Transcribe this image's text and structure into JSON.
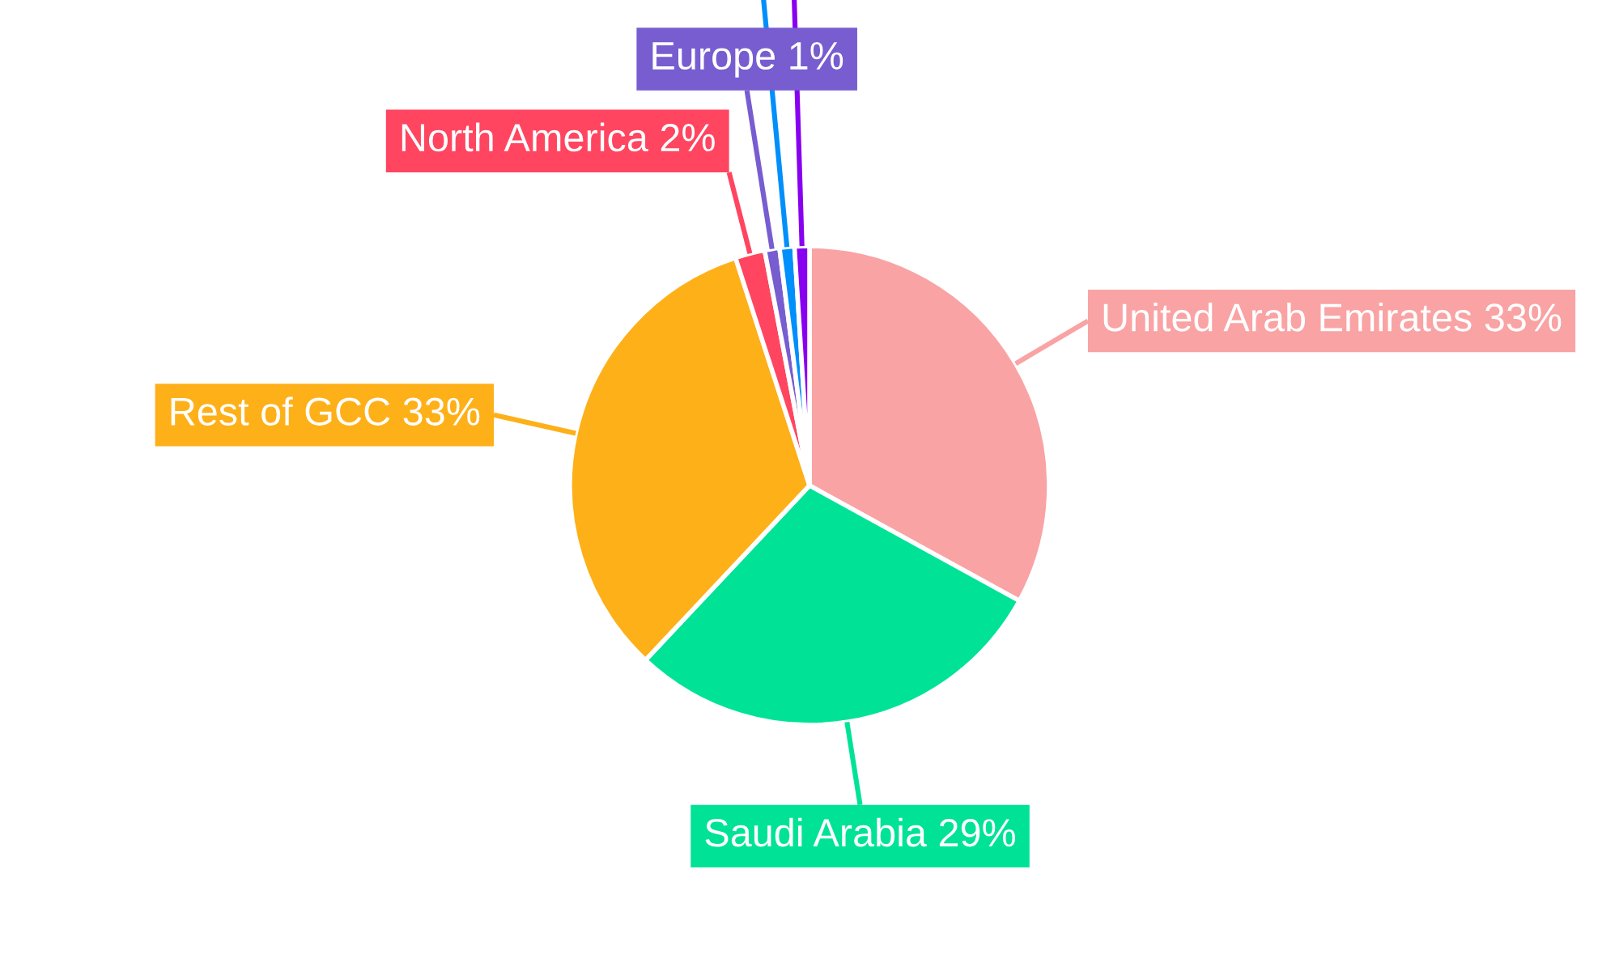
{
  "chart_data": {
    "type": "pie",
    "categories": [
      "United Arab Emirates",
      "Saudi Arabia",
      "Rest of GCC",
      "North America",
      "Europe",
      null,
      null
    ],
    "values": [
      33,
      29,
      33,
      2,
      1,
      1,
      1
    ],
    "value_labels": [
      "33%",
      "29%",
      "33%",
      "2%",
      "1%",
      null,
      null
    ],
    "colors": [
      "#f9a3a4",
      "#00e396",
      "#feb019",
      "#ff4560",
      "#775dd0",
      "#008ffb",
      "#8800f0"
    ]
  }
}
